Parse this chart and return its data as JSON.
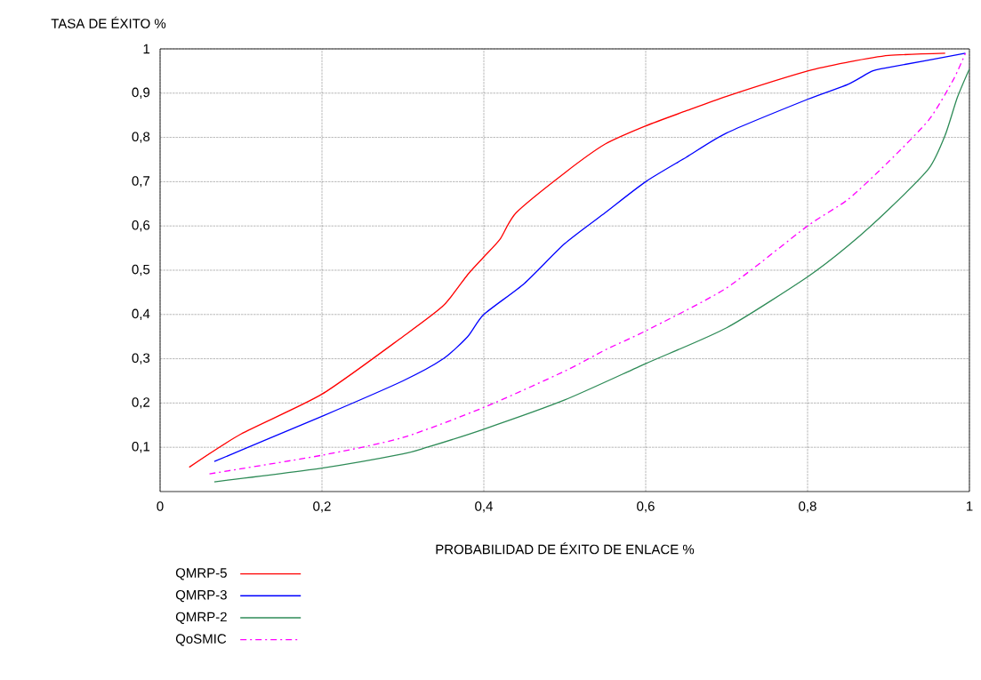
{
  "chart_data": {
    "type": "line",
    "xlabel": "PROBABILIDAD DE ÉXITO DE ENLACE %",
    "ylabel": "TASA DE ÉXITO %",
    "xlim": [
      0,
      1
    ],
    "ylim": [
      0,
      1
    ],
    "xticks": [
      0,
      {
        "value": 0.2,
        "label": "0,2"
      },
      {
        "value": 0.4,
        "label": "0,4"
      },
      {
        "value": 0.6,
        "label": "0,6"
      },
      {
        "value": 0.8,
        "label": "0,8"
      },
      1
    ],
    "yticks": [
      {
        "value": 0.1,
        "label": "0,1"
      },
      {
        "value": 0.2,
        "label": "0,2"
      },
      {
        "value": 0.3,
        "label": "0,3"
      },
      {
        "value": 0.4,
        "label": "0,4"
      },
      {
        "value": 0.5,
        "label": "0,5"
      },
      {
        "value": 0.6,
        "label": "0,6"
      },
      {
        "value": 0.7,
        "label": "0,7"
      },
      {
        "value": 0.8,
        "label": "0,8"
      },
      {
        "value": 0.9,
        "label": "0,9"
      },
      1
    ],
    "grid": true,
    "legend": "bottom",
    "series": [
      {
        "name": "QMRP-5",
        "color": "#ff0000",
        "x": [
          0.036,
          0.1,
          0.2,
          0.3,
          0.35,
          0.38,
          0.4,
          0.42,
          0.44,
          0.5,
          0.55,
          0.6,
          0.65,
          0.7,
          0.8,
          0.85,
          0.9,
          0.97
        ],
        "values": [
          0.055,
          0.13,
          0.22,
          0.35,
          0.42,
          0.49,
          0.53,
          0.57,
          0.63,
          0.72,
          0.785,
          0.826,
          0.86,
          0.893,
          0.95,
          0.97,
          0.985,
          0.99
        ]
      },
      {
        "name": "QMRP-3",
        "color": "#0000ff",
        "x": [
          0.067,
          0.2,
          0.3,
          0.35,
          0.38,
          0.4,
          0.45,
          0.5,
          0.55,
          0.6,
          0.65,
          0.7,
          0.8,
          0.85,
          0.88,
          0.9,
          0.995
        ],
        "values": [
          0.068,
          0.17,
          0.25,
          0.3,
          0.35,
          0.4,
          0.47,
          0.56,
          0.63,
          0.7,
          0.755,
          0.81,
          0.886,
          0.92,
          0.95,
          0.958,
          0.99
        ]
      },
      {
        "name": "QMRP-2",
        "color": "#2e8b57",
        "x": [
          0.067,
          0.2,
          0.3,
          0.33,
          0.4,
          0.5,
          0.6,
          0.7,
          0.8,
          0.85,
          0.9,
          0.95,
          0.97,
          0.985,
          1.0
        ],
        "values": [
          0.022,
          0.053,
          0.085,
          0.1,
          0.141,
          0.207,
          0.289,
          0.37,
          0.485,
          0.555,
          0.637,
          0.73,
          0.805,
          0.89,
          0.955
        ]
      },
      {
        "name": "QoSMIC",
        "color": "#ff00ff",
        "line_style": "dashdot",
        "x": [
          0.061,
          0.2,
          0.3,
          0.4,
          0.5,
          0.55,
          0.6,
          0.7,
          0.8,
          0.85,
          0.9,
          0.95,
          0.98,
          0.995
        ],
        "values": [
          0.04,
          0.082,
          0.122,
          0.19,
          0.272,
          0.32,
          0.363,
          0.46,
          0.6,
          0.66,
          0.745,
          0.84,
          0.93,
          0.99
        ]
      }
    ]
  }
}
